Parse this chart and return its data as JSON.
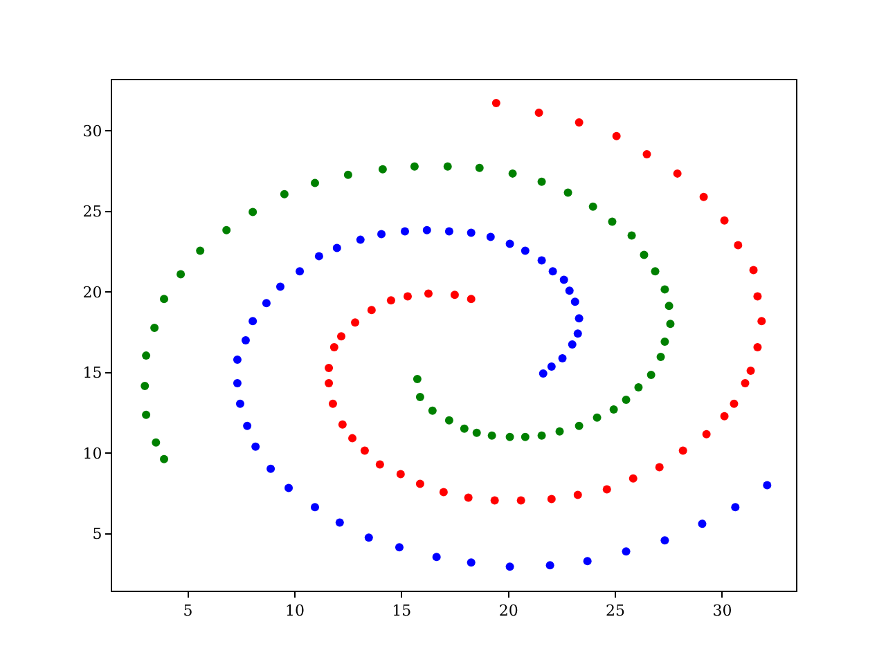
{
  "chart_data": {
    "type": "scatter",
    "marker": "circle",
    "xlim": [
      1.45,
      33.45
    ],
    "ylim": [
      1.46,
      33.14
    ],
    "xticks": [
      5,
      10,
      15,
      20,
      25,
      30
    ],
    "yticks": [
      5,
      10,
      15,
      20,
      25,
      30
    ],
    "series": [
      {
        "color": "#ff0000",
        "x": [
          19.42,
          21.42,
          23.3,
          25.05,
          26.47,
          27.9,
          29.13,
          30.1,
          30.74,
          31.46,
          31.65,
          31.84,
          31.65,
          31.33,
          31.07,
          30.55,
          30.1,
          29.26,
          28.16,
          27.06,
          25.83,
          24.6,
          23.24,
          22.01,
          20.58,
          19.35,
          18.12,
          16.96,
          15.86,
          14.95,
          13.98,
          13.27,
          12.69,
          12.23,
          11.78,
          11.59,
          11.59,
          11.84,
          12.17,
          12.82,
          13.59,
          14.5,
          15.28,
          16.25,
          17.48,
          18.25
        ],
        "values": [
          31.72,
          31.12,
          30.52,
          29.67,
          28.55,
          27.35,
          25.9,
          24.44,
          22.9,
          21.36,
          19.73,
          18.19,
          16.57,
          15.11,
          14.34,
          13.06,
          12.29,
          11.17,
          10.15,
          9.12,
          8.43,
          7.75,
          7.41,
          7.15,
          7.06,
          7.06,
          7.23,
          7.58,
          8.09,
          8.69,
          9.29,
          10.15,
          10.92,
          11.77,
          13.06,
          14.34,
          15.28,
          16.57,
          17.25,
          18.11,
          18.88,
          19.48,
          19.73,
          19.9,
          19.82,
          19.56
        ]
      },
      {
        "color": "#0000ff",
        "x": [
          32.1,
          30.61,
          29.06,
          27.31,
          25.5,
          23.69,
          21.94,
          20.06,
          18.25,
          16.63,
          14.89,
          13.46,
          12.1,
          10.94,
          9.71,
          8.87,
          8.16,
          7.77,
          7.44,
          7.31,
          7.31,
          7.7,
          8.03,
          8.67,
          9.32,
          10.23,
          11.13,
          11.97,
          13.07,
          14.05,
          15.15,
          16.18,
          17.22,
          18.25,
          19.16,
          20.06,
          20.78,
          21.55,
          22.07,
          22.59,
          22.85,
          23.11,
          23.3,
          23.24,
          22.98,
          22.52,
          22.01,
          21.62
        ],
        "values": [
          8.01,
          6.64,
          5.61,
          4.58,
          3.9,
          3.3,
          3.04,
          2.95,
          3.21,
          3.55,
          4.15,
          4.75,
          5.69,
          6.64,
          7.83,
          9.03,
          10.4,
          11.69,
          13.06,
          14.34,
          15.8,
          17.0,
          18.19,
          19.31,
          20.33,
          21.28,
          22.22,
          22.73,
          23.24,
          23.59,
          23.76,
          23.84,
          23.76,
          23.67,
          23.42,
          22.99,
          22.56,
          21.96,
          21.28,
          20.76,
          20.08,
          19.39,
          18.36,
          17.42,
          16.74,
          15.88,
          15.37,
          14.94
        ]
      },
      {
        "color": "#008000",
        "x": [
          3.88,
          3.5,
          3.04,
          2.98,
          3.04,
          3.43,
          3.88,
          4.66,
          5.57,
          6.8,
          8.03,
          9.51,
          10.94,
          12.49,
          14.11,
          15.6,
          17.15,
          18.64,
          20.19,
          21.55,
          22.78,
          23.95,
          24.85,
          25.76,
          26.34,
          26.86,
          27.31,
          27.51,
          27.57,
          27.31,
          27.12,
          26.67,
          26.08,
          25.5,
          24.92,
          24.14,
          23.3,
          22.39,
          21.55,
          20.78,
          20.06,
          19.22,
          18.51,
          17.93,
          17.22,
          16.44,
          15.86,
          15.73
        ],
        "values": [
          9.63,
          10.66,
          12.37,
          14.17,
          16.05,
          17.77,
          19.56,
          21.1,
          22.56,
          23.84,
          24.96,
          26.07,
          26.76,
          27.27,
          27.61,
          27.78,
          27.78,
          27.7,
          27.35,
          26.84,
          26.16,
          25.3,
          24.36,
          23.5,
          22.3,
          21.28,
          20.16,
          19.13,
          18.02,
          16.91,
          15.97,
          14.85,
          14.08,
          13.31,
          12.71,
          12.2,
          11.69,
          11.34,
          11.09,
          11.0,
          11.0,
          11.09,
          11.26,
          11.52,
          12.03,
          12.63,
          13.48,
          14.6
        ]
      }
    ]
  }
}
